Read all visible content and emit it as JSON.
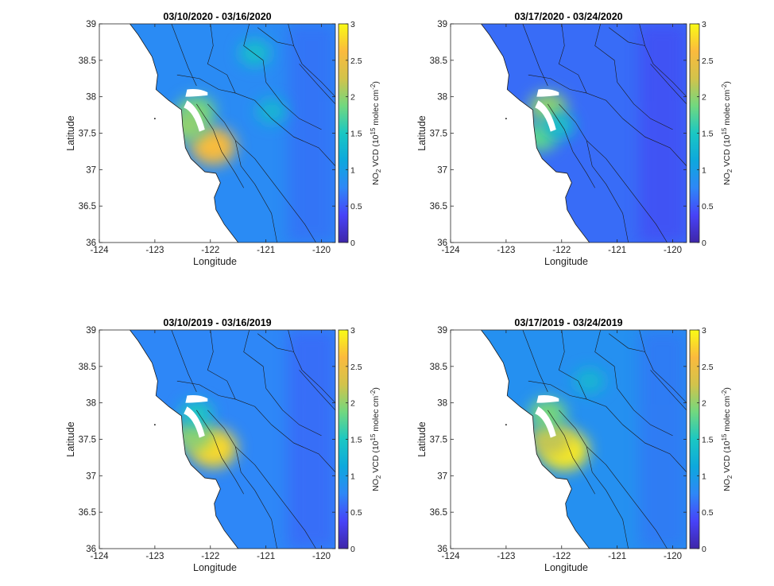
{
  "chart_data": [
    {
      "type": "heatmap",
      "title": "03/10/2020 - 03/16/2020",
      "xlabel": "Longitude",
      "ylabel": "Latitude",
      "xlim": [
        -124,
        -119.75
      ],
      "ylim": [
        36,
        39
      ],
      "xticks": [
        "-124",
        "-123",
        "-122",
        "-121",
        "-120"
      ],
      "yticks": [
        "36",
        "36.5",
        "37",
        "37.5",
        "38",
        "38.5",
        "39"
      ],
      "colorbar": {
        "label": "NO2 VCD (10^15 molec cm^-2)",
        "range": [
          0,
          3
        ],
        "ticks": [
          "0",
          "0.5",
          "1",
          "1.5",
          "2",
          "2.5",
          "3"
        ]
      },
      "hotspots": [
        {
          "lon": -121.95,
          "lat": 37.32,
          "value": 2.6
        },
        {
          "lon": -122.25,
          "lat": 37.8,
          "value": 1.9
        },
        {
          "lon": -122.4,
          "lat": 37.6,
          "value": 2.0
        },
        {
          "lon": -121.2,
          "lat": 38.6,
          "value": 1.4
        },
        {
          "lon": -120.9,
          "lat": 37.8,
          "value": 1.3
        }
      ],
      "background_value": 0.8
    },
    {
      "type": "heatmap",
      "title": "03/17/2020 - 03/24/2020",
      "xlabel": "Longitude",
      "ylabel": "Latitude",
      "xlim": [
        -124,
        -119.75
      ],
      "ylim": [
        36,
        39
      ],
      "xticks": [
        "-124",
        "-123",
        "-122",
        "-121",
        "-120"
      ],
      "yticks": [
        "36",
        "36.5",
        "37",
        "37.5",
        "38",
        "38.5",
        "39"
      ],
      "colorbar": {
        "label": "NO2 VCD (10^15 molec cm^-2)",
        "range": [
          0,
          3
        ],
        "ticks": [
          "0",
          "0.5",
          "1",
          "1.5",
          "2",
          "2.5",
          "3"
        ]
      },
      "hotspots": [
        {
          "lon": -122.25,
          "lat": 37.85,
          "value": 2.0
        },
        {
          "lon": -122.4,
          "lat": 37.45,
          "value": 1.8
        },
        {
          "lon": -122.05,
          "lat": 37.6,
          "value": 1.4
        }
      ],
      "background_value": 0.6
    },
    {
      "type": "heatmap",
      "title": "03/10/2019 - 03/16/2019",
      "xlabel": "Longitude",
      "ylabel": "Latitude",
      "xlim": [
        -124,
        -119.75
      ],
      "ylim": [
        36,
        39
      ],
      "xticks": [
        "-124",
        "-123",
        "-122",
        "-121",
        "-120"
      ],
      "yticks": [
        "36",
        "36.5",
        "37",
        "37.5",
        "38",
        "38.5",
        "39"
      ],
      "colorbar": {
        "label": "NO2 VCD (10^15 molec cm^-2)",
        "range": [
          0,
          3
        ],
        "ticks": [
          "0",
          "0.5",
          "1",
          "1.5",
          "2",
          "2.5",
          "3"
        ]
      },
      "hotspots": [
        {
          "lon": -121.95,
          "lat": 37.38,
          "value": 2.8
        },
        {
          "lon": -122.3,
          "lat": 37.55,
          "value": 2.0
        },
        {
          "lon": -122.25,
          "lat": 37.85,
          "value": 1.5
        }
      ],
      "background_value": 0.75
    },
    {
      "type": "heatmap",
      "title": "03/17/2019 - 03/24/2019",
      "xlabel": "Longitude",
      "ylabel": "Latitude",
      "xlim": [
        -124,
        -119.75
      ],
      "ylim": [
        36,
        39
      ],
      "xticks": [
        "-124",
        "-123",
        "-122",
        "-121",
        "-120"
      ],
      "yticks": [
        "36",
        "36.5",
        "37",
        "37.5",
        "38",
        "38.5",
        "39"
      ],
      "colorbar": {
        "label": "NO2 VCD (10^15 molec cm^-2)",
        "range": [
          0,
          3
        ],
        "ticks": [
          "0",
          "0.5",
          "1",
          "1.5",
          "2",
          "2.5",
          "3"
        ]
      },
      "hotspots": [
        {
          "lon": -121.95,
          "lat": 37.35,
          "value": 2.9
        },
        {
          "lon": -122.2,
          "lat": 37.5,
          "value": 2.2
        },
        {
          "lon": -122.25,
          "lat": 37.85,
          "value": 1.9
        },
        {
          "lon": -121.5,
          "lat": 38.3,
          "value": 1.3
        }
      ],
      "background_value": 0.85
    }
  ],
  "colormap": [
    "#3e26a8",
    "#4743f8",
    "#2e87f7",
    "#0da8dd",
    "#1ac7c3",
    "#71d87f",
    "#d2c34b",
    "#fbba3d",
    "#f9fb15"
  ]
}
